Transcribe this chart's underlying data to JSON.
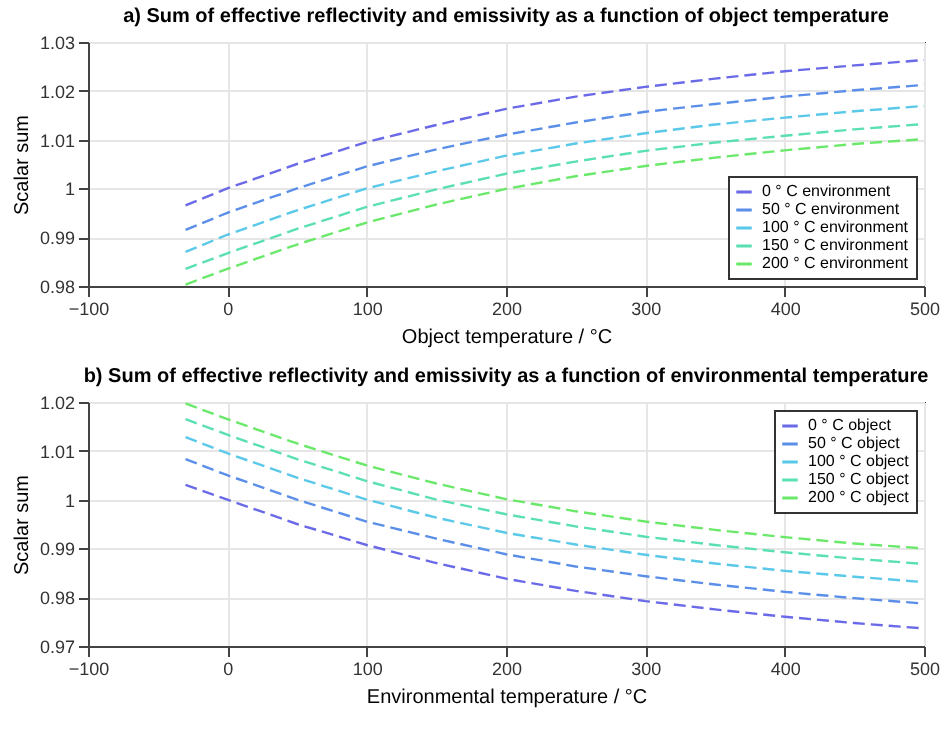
{
  "chart_data": [
    {
      "type": "line",
      "title": "a) Sum of effective reflectivity and emissivity as a function of object temperature",
      "xlabel": "Object temperature / °C",
      "ylabel": "Scalar sum",
      "x": [
        -30,
        0,
        50,
        100,
        150,
        200,
        250,
        300,
        350,
        400,
        450,
        500
      ],
      "series": [
        {
          "name": "0 ° C environment",
          "color": "#6a6ae8",
          "values": [
            0.9965,
            1.0,
            1.005,
            1.0095,
            1.013,
            1.0163,
            1.0188,
            1.0208,
            1.0225,
            1.024,
            1.0252,
            1.0263
          ]
        },
        {
          "name": "50 ° C environment",
          "color": "#5a8ee8",
          "values": [
            0.9915,
            0.995,
            1.0,
            1.0045,
            1.008,
            1.011,
            1.0135,
            1.0157,
            1.0173,
            1.0188,
            1.0201,
            1.0212
          ]
        },
        {
          "name": "100 ° C environment",
          "color": "#5ac8e8",
          "values": [
            0.987,
            0.9905,
            0.9955,
            1.0,
            1.0035,
            1.0067,
            1.0092,
            1.0113,
            1.0131,
            1.0145,
            1.0158,
            1.0169
          ]
        },
        {
          "name": "150 ° C environment",
          "color": "#5ae0b0",
          "values": [
            0.9835,
            0.9867,
            0.9917,
            0.9962,
            0.9998,
            1.003,
            1.0055,
            1.0077,
            1.0094,
            1.0108,
            1.0121,
            1.0132
          ]
        },
        {
          "name": "200 ° C environment",
          "color": "#6ae86a",
          "values": [
            0.9803,
            0.9835,
            0.9885,
            0.993,
            0.9967,
            0.9999,
            1.0025,
            1.0046,
            1.0063,
            1.0078,
            1.0091,
            1.0101
          ]
        }
      ],
      "xlim": [
        -100,
        500
      ],
      "xticks": [
        -100,
        0,
        100,
        200,
        300,
        400,
        500
      ],
      "ylim": [
        0.98,
        1.03
      ],
      "yticks": [
        0.98,
        0.99,
        1,
        1.01,
        1.02,
        1.03
      ],
      "grid": true,
      "legend": "bottom right",
      "line_style": "dashed"
    },
    {
      "type": "line",
      "title": "b) Sum of effective reflectivity and emissivity as a function of environmental temperature",
      "xlabel": "Environmental temperature / °C",
      "ylabel": "Scalar sum",
      "x": [
        -30,
        0,
        50,
        100,
        150,
        200,
        250,
        300,
        350,
        400,
        450,
        500
      ],
      "series": [
        {
          "name": "0 ° C object",
          "color": "#6a6ae8",
          "values": [
            1.003,
            1.0,
            0.995,
            0.9907,
            0.987,
            0.9838,
            0.9813,
            0.9792,
            0.9775,
            0.976,
            0.9747,
            0.9736
          ]
        },
        {
          "name": "50 ° C object",
          "color": "#5a8ee8",
          "values": [
            1.0083,
            1.005,
            1.0,
            0.9955,
            0.992,
            0.9888,
            0.9863,
            0.9843,
            0.9826,
            0.9811,
            0.9798,
            0.9787
          ]
        },
        {
          "name": "100 ° C object",
          "color": "#5ac8e8",
          "values": [
            1.0128,
            1.0095,
            1.0045,
            1.0,
            0.9963,
            0.9932,
            0.9908,
            0.9887,
            0.9869,
            0.9854,
            0.9842,
            0.9831
          ]
        },
        {
          "name": "150 ° C object",
          "color": "#5ae0b0",
          "values": [
            1.0165,
            1.0133,
            1.0083,
            1.0038,
            1.0,
            0.997,
            0.9945,
            0.9924,
            0.9907,
            0.9892,
            0.9879,
            0.9868
          ]
        },
        {
          "name": "200 ° C object",
          "color": "#6ae86a",
          "values": [
            1.0197,
            1.0165,
            1.0115,
            1.007,
            1.0033,
            1.0001,
            0.9976,
            0.9955,
            0.9938,
            0.9923,
            0.991,
            0.99
          ]
        }
      ],
      "xlim": [
        -100,
        500
      ],
      "xticks": [
        -100,
        0,
        100,
        200,
        300,
        400,
        500
      ],
      "ylim": [
        0.97,
        1.02
      ],
      "yticks": [
        0.97,
        0.98,
        0.99,
        1,
        1.01,
        1.02
      ],
      "grid": true,
      "legend": "top right",
      "line_style": "dashed"
    }
  ]
}
